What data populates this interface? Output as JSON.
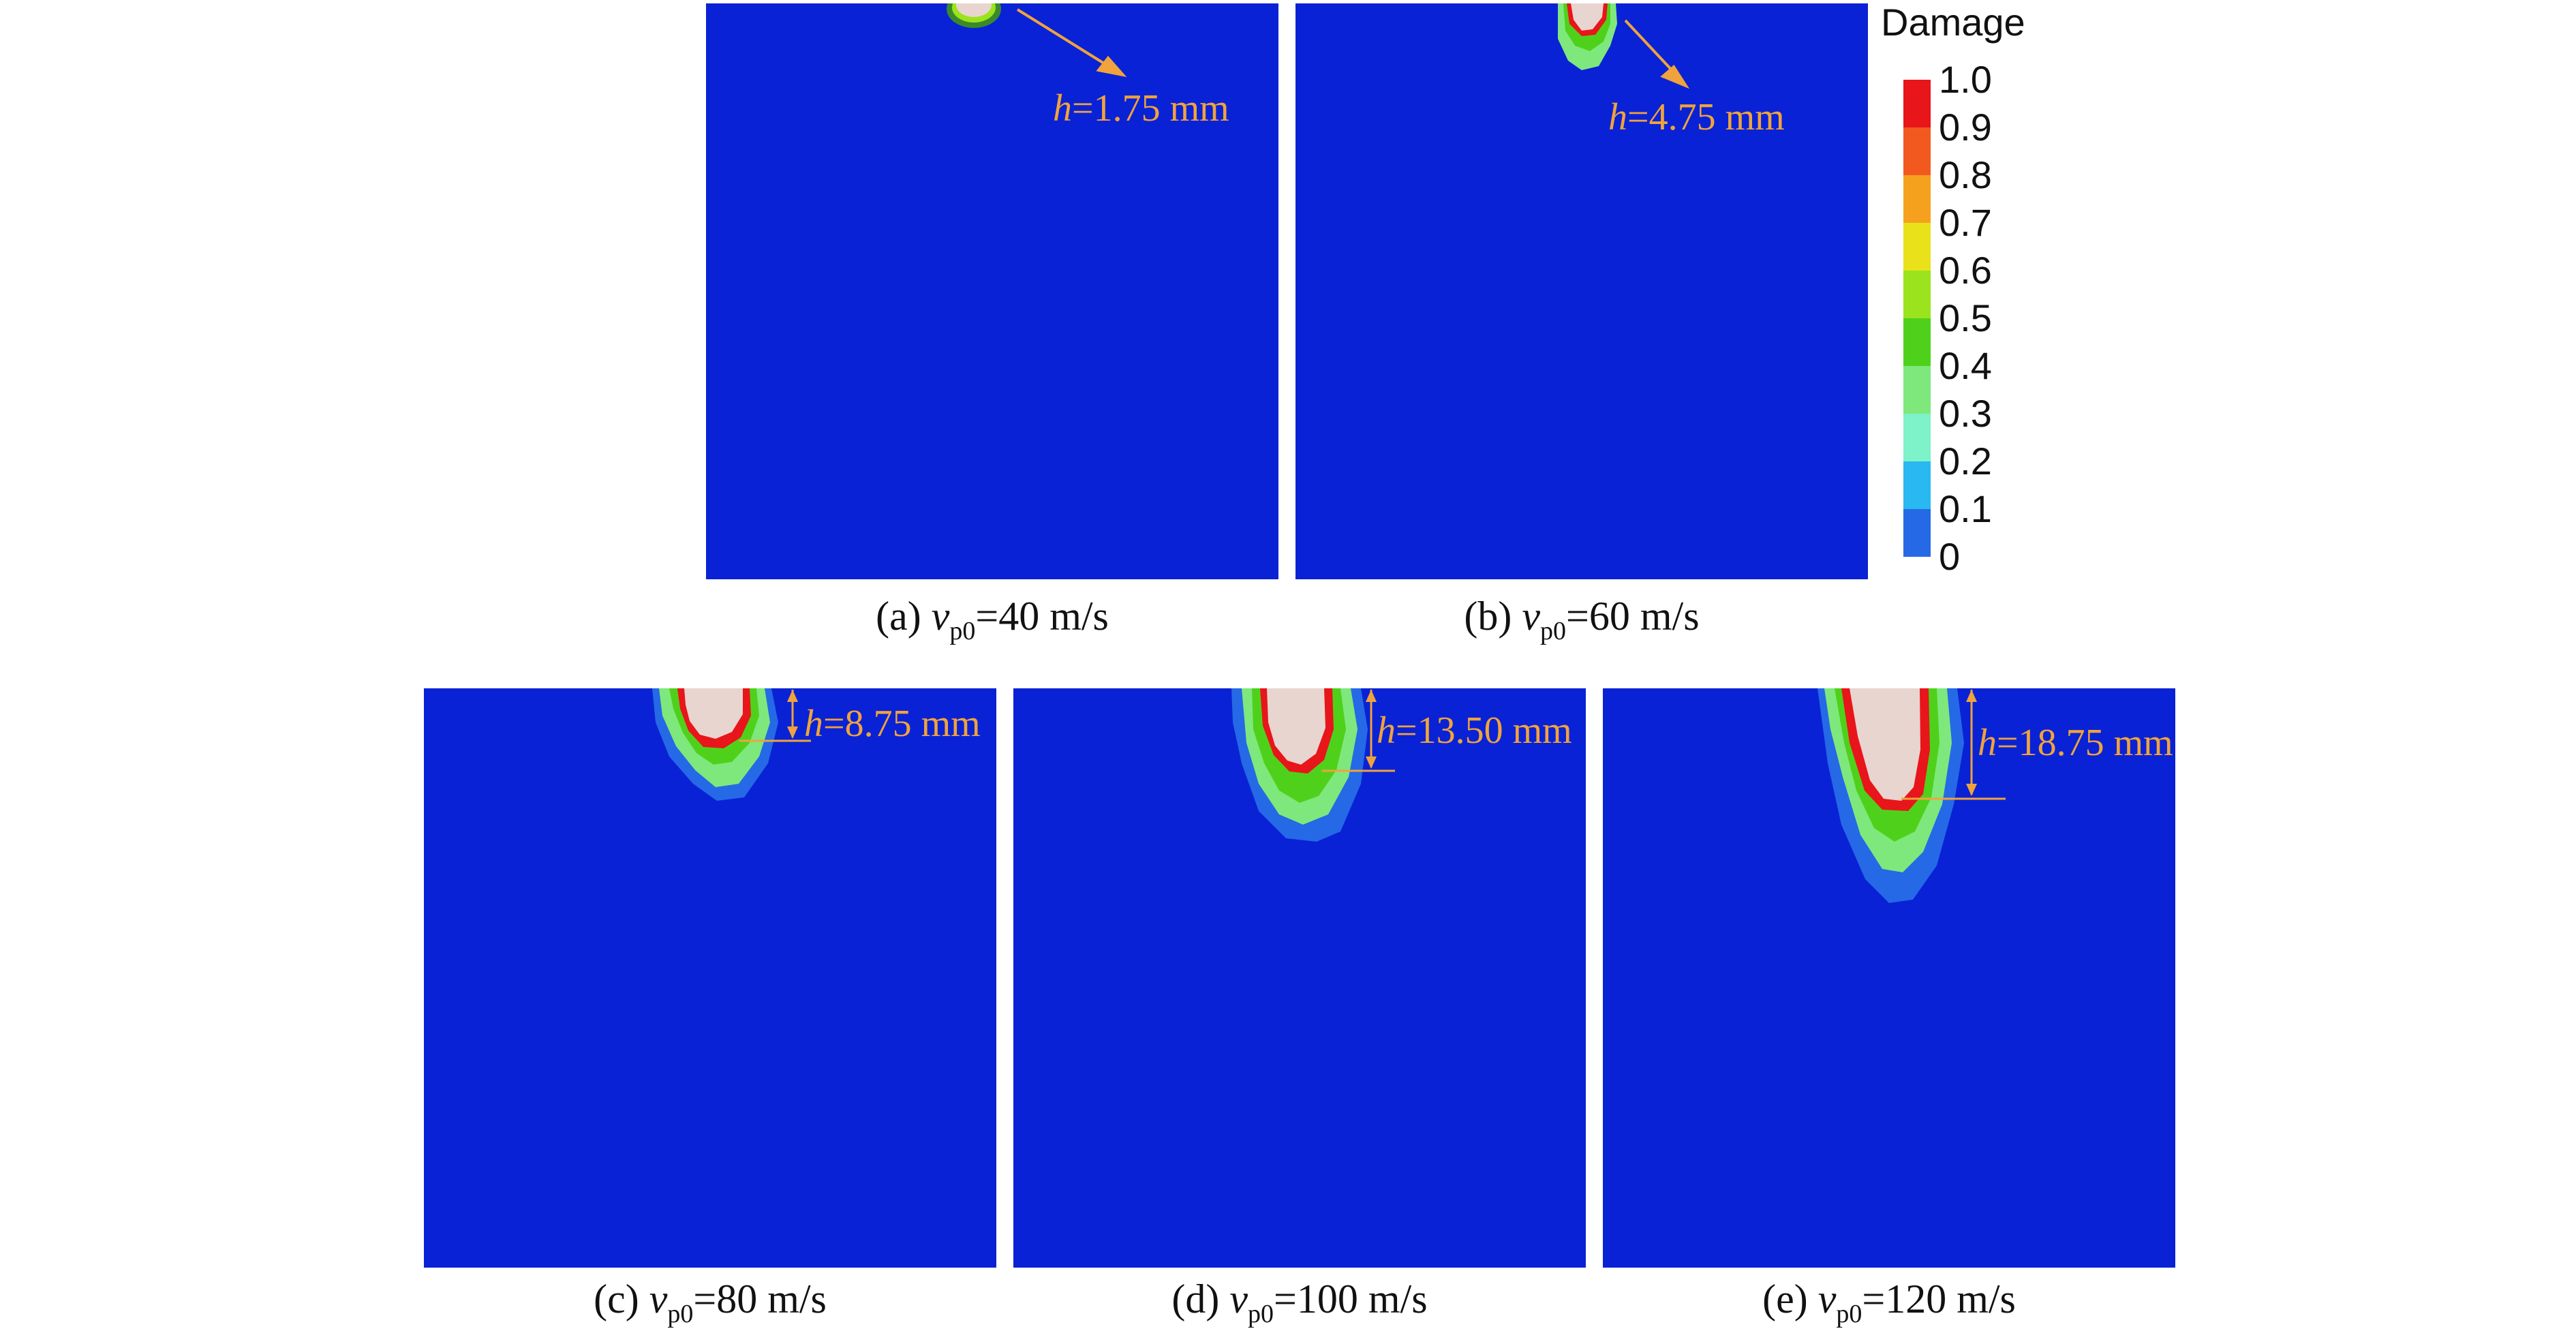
{
  "figure": {
    "panels": [
      {
        "id": "a",
        "caption_prefix": "(a) ",
        "caption_var": "v",
        "caption_sub": "p0",
        "caption_suffix": "=40 m/s",
        "annotation_var": "h",
        "annotation_value": "=1.75 mm",
        "penetration_mm": 1.75
      },
      {
        "id": "b",
        "caption_prefix": "(b) ",
        "caption_var": "v",
        "caption_sub": "p0",
        "caption_suffix": "=60 m/s",
        "annotation_var": "h",
        "annotation_value": "=4.75 mm",
        "penetration_mm": 4.75
      },
      {
        "id": "c",
        "caption_prefix": "(c) ",
        "caption_var": "v",
        "caption_sub": "p0",
        "caption_suffix": "=80 m/s",
        "annotation_var": "h",
        "annotation_value": "=8.75 mm",
        "penetration_mm": 8.75
      },
      {
        "id": "d",
        "caption_prefix": "(d) ",
        "caption_var": "v",
        "caption_sub": "p0",
        "caption_suffix": "=100 m/s",
        "annotation_var": "h",
        "annotation_value": "=13.50 mm",
        "penetration_mm": 13.5
      },
      {
        "id": "e",
        "caption_prefix": "(e) ",
        "caption_var": "v",
        "caption_sub": "p0",
        "caption_suffix": "=120 m/s",
        "annotation_var": "h",
        "annotation_value": "=18.75 mm",
        "penetration_mm": 18.75
      }
    ]
  },
  "legend": {
    "title": "Damage",
    "ticks": [
      "1.0",
      "0.9",
      "0.8",
      "0.7",
      "0.6",
      "0.5",
      "0.4",
      "0.3",
      "0.2",
      "0.1",
      "0"
    ],
    "colors": [
      "#e8151b",
      "#f2591f",
      "#f6a11e",
      "#e9e21b",
      "#9be31c",
      "#4fd11b",
      "#7ee87c",
      "#7ef2c8",
      "#29b8f0",
      "#2569e6",
      "#0a22d6"
    ]
  },
  "colors": {
    "background": "#0a22d6",
    "annotation": "#f0a33c",
    "projectile": "#e8d5cf"
  }
}
